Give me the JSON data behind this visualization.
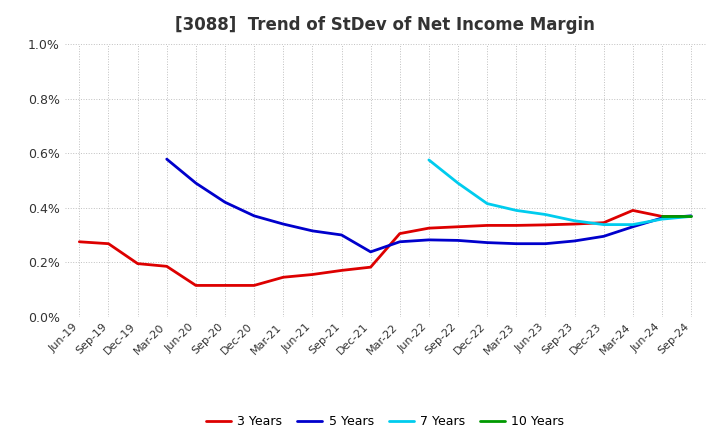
{
  "title": "[3088]  Trend of StDev of Net Income Margin",
  "ylim": [
    0.0,
    0.01
  ],
  "yticks": [
    0.0,
    0.002,
    0.004,
    0.006,
    0.008,
    0.01
  ],
  "ytick_labels": [
    "0.0%",
    "0.2%",
    "0.4%",
    "0.6%",
    "0.8%",
    "1.0%"
  ],
  "background_color": "#ffffff",
  "plot_bg_color": "#ffffff",
  "grid_color": "#c0c0c0",
  "line_colors": {
    "3y": "#dd0000",
    "5y": "#0000cc",
    "7y": "#00ccee",
    "10y": "#009900"
  },
  "x_labels": [
    "Jun-19",
    "Sep-19",
    "Dec-19",
    "Mar-20",
    "Jun-20",
    "Sep-20",
    "Dec-20",
    "Mar-21",
    "Jun-21",
    "Sep-21",
    "Dec-21",
    "Mar-22",
    "Jun-22",
    "Sep-22",
    "Dec-22",
    "Mar-23",
    "Jun-23",
    "Sep-23",
    "Dec-23",
    "Mar-24",
    "Jun-24",
    "Sep-24"
  ],
  "series_3y": [
    0.00275,
    0.00268,
    0.00195,
    0.00185,
    0.00115,
    0.00115,
    0.00115,
    0.00145,
    0.00155,
    0.0017,
    0.00182,
    0.00305,
    0.00325,
    0.0033,
    0.00335,
    0.00335,
    0.00337,
    0.0034,
    0.00345,
    0.0039,
    0.00368,
    0.00368
  ],
  "series_5y": [
    null,
    null,
    null,
    0.00578,
    0.0049,
    0.0042,
    0.0037,
    0.0034,
    0.00315,
    0.003,
    0.00238,
    0.00275,
    0.00282,
    0.0028,
    0.00272,
    0.00268,
    0.00268,
    0.00278,
    0.00295,
    0.0033,
    0.00362,
    0.0037
  ],
  "series_7y": [
    null,
    null,
    null,
    null,
    null,
    null,
    null,
    null,
    null,
    null,
    null,
    null,
    0.00575,
    0.0049,
    0.00415,
    0.0039,
    0.00375,
    0.00352,
    0.00338,
    0.00338,
    0.00358,
    0.00368
  ],
  "series_10y": [
    null,
    null,
    null,
    null,
    null,
    null,
    null,
    null,
    null,
    null,
    null,
    null,
    null,
    null,
    null,
    null,
    null,
    null,
    null,
    null,
    0.00368,
    0.00368
  ],
  "legend_labels": [
    "3 Years",
    "5 Years",
    "7 Years",
    "10 Years"
  ]
}
